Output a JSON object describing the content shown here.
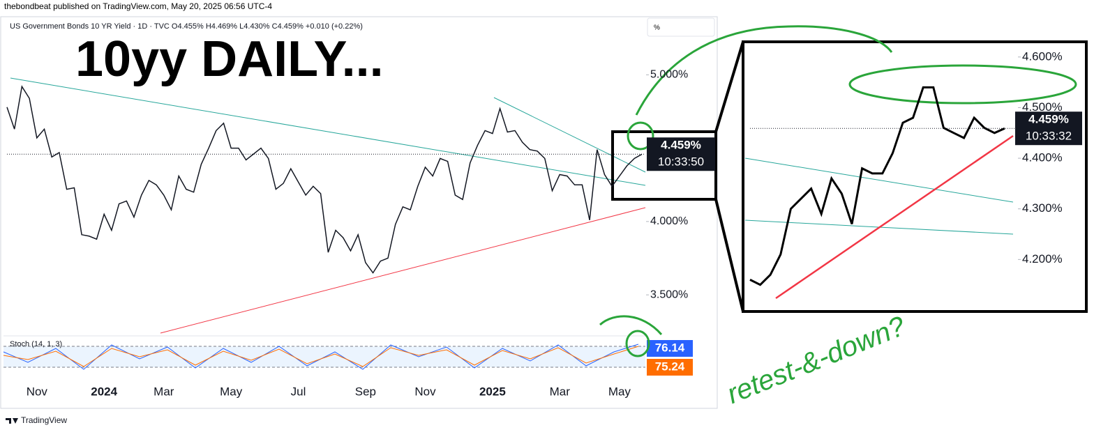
{
  "header": {
    "published": "thebondbeat published on TradingView.com, May 20, 2025 06:56 UTC-4",
    "symbol_line": "US Government Bonds 10 YR Yield · 1D · TVC  O4.455% H4.469% L4.430% C4.459% +0.010 (+0.22%)",
    "unit_box": "%"
  },
  "chart_data": [
    {
      "type": "line",
      "title": "10yy DAILY...",
      "color": "#131722",
      "categories": [
        null,
        null,
        null,
        null,
        "Nov",
        null,
        null,
        null,
        null,
        null,
        null,
        null,
        null,
        "2024",
        null,
        null,
        null,
        null,
        null,
        null,
        null,
        "Mar",
        null,
        null,
        null,
        null,
        null,
        null,
        null,
        null,
        "May",
        null,
        null,
        null,
        null,
        null,
        null,
        null,
        null,
        "Jul",
        null,
        null,
        null,
        null,
        null,
        null,
        null,
        null,
        "Sep",
        null,
        null,
        null,
        null,
        null,
        null,
        null,
        "Nov",
        null,
        null,
        null,
        null,
        null,
        null,
        null,
        null,
        "2025",
        null,
        null,
        null,
        null,
        null,
        null,
        null,
        null,
        "Mar",
        null,
        null,
        null,
        null,
        null,
        null,
        null,
        "May",
        null,
        null,
        null
      ],
      "values": [
        4.78,
        4.63,
        4.92,
        4.84,
        4.57,
        4.63,
        4.44,
        4.47,
        4.22,
        4.23,
        3.91,
        3.9,
        3.88,
        4.05,
        3.94,
        4.12,
        4.14,
        4.03,
        4.18,
        4.28,
        4.25,
        4.18,
        4.08,
        4.31,
        4.22,
        4.2,
        4.39,
        4.5,
        4.62,
        4.67,
        4.5,
        4.5,
        4.42,
        4.46,
        4.5,
        4.43,
        4.22,
        4.26,
        4.36,
        4.27,
        4.18,
        4.24,
        4.19,
        3.79,
        3.94,
        3.89,
        3.8,
        3.91,
        3.72,
        3.65,
        3.73,
        3.75,
        3.98,
        4.1,
        4.08,
        4.24,
        4.37,
        4.31,
        4.43,
        4.41,
        4.18,
        4.15,
        4.4,
        4.52,
        4.62,
        4.6,
        4.77,
        4.61,
        4.62,
        4.54,
        4.49,
        4.48,
        4.43,
        4.21,
        4.32,
        4.31,
        4.25,
        4.25,
        4.01,
        4.49,
        4.32,
        4.24,
        4.31,
        4.38,
        4.43,
        4.459
      ],
      "ylim": [
        3.23,
        5.32
      ],
      "yticks": [
        {
          "value": 3.5,
          "label": "3.500%"
        },
        {
          "value": 4,
          "label": "4.000%"
        },
        {
          "value": 4.5,
          "label": "4.500%"
        },
        {
          "value": 5,
          "label": "5.000%"
        }
      ],
      "grid": false,
      "price_label": "4.459%",
      "countdown": "10:33:50"
    },
    {
      "type": "line",
      "color": "#000000",
      "values": [
        4.16,
        4.15,
        4.17,
        4.21,
        4.3,
        4.32,
        4.34,
        4.29,
        4.36,
        4.33,
        4.27,
        4.38,
        4.37,
        4.37,
        4.41,
        4.47,
        4.48,
        4.54,
        4.54,
        4.46,
        4.45,
        4.44,
        4.48,
        4.46,
        4.45,
        4.459
      ],
      "ylim": [
        4.1,
        4.63
      ],
      "yticks": [
        {
          "value": 4.2,
          "label": "4.200%"
        },
        {
          "value": 4.3,
          "label": "4.300%"
        },
        {
          "value": 4.4,
          "label": "4.400%"
        },
        {
          "value": 4.5,
          "label": "4.500%"
        },
        {
          "value": 4.6,
          "label": "4.600%"
        }
      ],
      "grid": false,
      "price_label": "4.459%",
      "countdown": "10:33:32"
    }
  ],
  "stoch": {
    "title": "Stoch (14, 1, 3)",
    "k_label": "76.14",
    "d_label": "75.24"
  },
  "annotation": "retest-&-down?",
  "footer": "TradingView"
}
